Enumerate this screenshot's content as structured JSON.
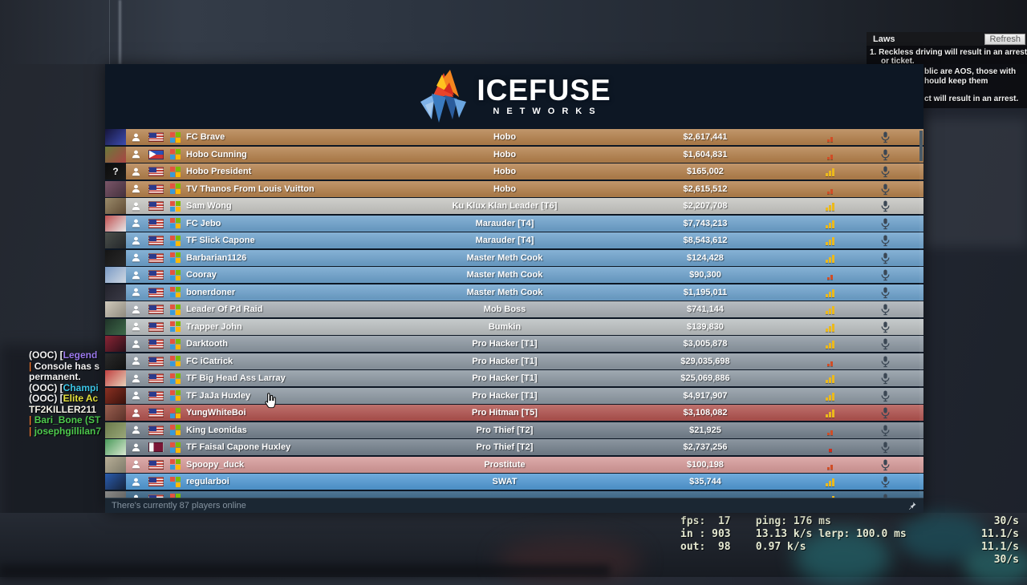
{
  "logo": {
    "title": "ICEFUSE",
    "subtitle": "NETWORKS"
  },
  "status_bar": {
    "text": "There's currently 87 players online"
  },
  "laws": {
    "title": "Laws",
    "refresh_label": "Refresh",
    "rule1_line1": "1. Reckless driving will result in an arrest",
    "rule1_line2": "or ticket.",
    "fragment_line1": "blic are AOS, those with",
    "fragment_line2": "hould keep them",
    "fragment_line3": "ct will result in an arrest."
  },
  "chat": {
    "lines": [
      {
        "segments": [
          {
            "text": "(OOC) [",
            "color": "#f2f2f2"
          },
          {
            "text": "Legend",
            "color": "#9d7bf0"
          }
        ]
      },
      {
        "segments": [
          {
            "text": "| ",
            "color": "#e0702e"
          },
          {
            "text": "Console has s",
            "color": "#f2f2f2"
          }
        ]
      },
      {
        "segments": [
          {
            "text": "permanent.",
            "color": "#f2f2f2"
          }
        ]
      },
      {
        "segments": [
          {
            "text": "(OOC) [",
            "color": "#f2f2f2"
          },
          {
            "text": "Champi",
            "color": "#3cc7e8"
          }
        ]
      },
      {
        "segments": [
          {
            "text": "(OOC) [",
            "color": "#f2f2f2"
          },
          {
            "text": "Elite Ac",
            "color": "#e6e23c"
          }
        ]
      },
      {
        "segments": [
          {
            "text": "TF2KILLER211",
            "color": "#f5f2e6"
          }
        ]
      },
      {
        "segments": [
          {
            "text": "| ",
            "color": "#e0702e"
          },
          {
            "text": "Bari_Bone (ST",
            "color": "#4ecb4e"
          }
        ]
      },
      {
        "segments": [
          {
            "text": "| ",
            "color": "#e0702e"
          },
          {
            "text": "josephgillilan7",
            "color": "#4ecb4e"
          }
        ]
      }
    ]
  },
  "netgraph": {
    "lines": [
      {
        "left": "fps:  17    ping: 176 ms",
        "rate": "30/s"
      },
      {
        "left": "in : 903    13.13 k/s lerp: 100.0 ms",
        "rate": "11.1/s"
      },
      {
        "left": "out:  98    0.97 k/s",
        "rate": "11.1/s"
      },
      {
        "left": "",
        "rate": "30/s"
      }
    ]
  },
  "players": [
    {
      "name": "FC Brave",
      "job": "Hobo",
      "money": "$2,617,441",
      "color": "#b5824e",
      "ping": "low",
      "flag": "us",
      "avatar": [
        "#15143a",
        "#3d4db0"
      ],
      "avatar_label": ""
    },
    {
      "name": "Hobo Cunning",
      "job": "Hobo",
      "money": "$1,604,831",
      "color": "#b5824e",
      "ping": "low",
      "flag": "ph",
      "avatar": [
        "#6a7a3a",
        "#aa4444"
      ],
      "avatar_label": ""
    },
    {
      "name": "Hobo President",
      "job": "Hobo",
      "money": "$165,002",
      "color": "#b5824e",
      "ping": "full",
      "flag": "us",
      "avatar": [
        "#0c0c0c",
        "#1c1c1c"
      ],
      "avatar_label": "?"
    },
    {
      "name": "TV Thanos From Louis Vuitton",
      "job": "Hobo",
      "money": "$2,615,512",
      "color": "#b5824e",
      "ping": "low",
      "flag": "us",
      "avatar": [
        "#7a5568",
        "#43303c"
      ],
      "avatar_label": ""
    },
    {
      "name": "Sam Wong",
      "job": "Ku Klux Klan Leader [T6]",
      "money": "$2,207,708",
      "color": "#c6c6c2",
      "ping": "full",
      "flag": "us",
      "avatar": [
        "#9a8a6a",
        "#5f4a33"
      ],
      "avatar_label": ""
    },
    {
      "name": "FC Jebo",
      "job": "Marauder [T4]",
      "money": "$7,743,213",
      "color": "#6fa3cd",
      "ping": "full",
      "flag": "us",
      "avatar": [
        "#c05050",
        "#e8e8e8"
      ],
      "avatar_label": ""
    },
    {
      "name": "TF Slick Capone",
      "job": "Marauder [T4]",
      "money": "$8,543,612",
      "color": "#6fa3cd",
      "ping": "full",
      "flag": "us",
      "avatar": [
        "#4a4f4a",
        "#23262a"
      ],
      "avatar_label": ""
    },
    {
      "name": "Barbarian1126",
      "job": "Master Meth Cook",
      "money": "$124,428",
      "color": "#6fa3cd",
      "ping": "full",
      "flag": "us",
      "avatar": [
        "#151515",
        "#2a2a2a"
      ],
      "avatar_label": ""
    },
    {
      "name": "Cooray",
      "job": "Master Meth Cook",
      "money": "$90,300",
      "color": "#6fa3cd",
      "ping": "low",
      "flag": "us",
      "avatar": [
        "#7a9ac5",
        "#cfd8e2"
      ],
      "avatar_label": ""
    },
    {
      "name": "bonerdoner",
      "job": "Master Meth Cook",
      "money": "$1,195,011",
      "color": "#6fa3cd",
      "ping": "full",
      "flag": "us",
      "avatar": [
        "#23232c",
        "#3a3a46"
      ],
      "avatar_label": ""
    },
    {
      "name": "Leader Of Pd Raid",
      "job": "Mob Boss",
      "money": "$741,144",
      "color": "#a9afb5",
      "ping": "full",
      "flag": "us",
      "avatar": [
        "#cfc9bb",
        "#8f8a7e"
      ],
      "avatar_label": ""
    },
    {
      "name": "Trapper John",
      "job": "Bumkin",
      "money": "$139,830",
      "color": "#bbc0c1",
      "ping": "full",
      "flag": "us",
      "avatar": [
        "#1f3328",
        "#3f6a4a"
      ],
      "avatar_label": ""
    },
    {
      "name": "Darktooth",
      "job": "Pro Hacker [T1]",
      "money": "$3,005,878",
      "color": "#8e99a3",
      "ping": "full",
      "flag": "us",
      "avatar": [
        "#8a2535",
        "#2a0f18"
      ],
      "avatar_label": ""
    },
    {
      "name": "FC iCatrick",
      "job": "Pro Hacker [T1]",
      "money": "$29,035,698",
      "color": "#8e99a3",
      "ping": "low",
      "flag": "us",
      "avatar": [
        "#2b2b2b",
        "#101010"
      ],
      "avatar_label": ""
    },
    {
      "name": "TF Big Head Ass Larray",
      "job": "Pro Hacker [T1]",
      "money": "$25,069,886",
      "color": "#8e99a3",
      "ping": "full",
      "flag": "us",
      "avatar": [
        "#c04040",
        "#e8d0b8"
      ],
      "avatar_label": ""
    },
    {
      "name": "TF JaJa Huxley",
      "job": "Pro Hacker [T1]",
      "money": "$4,917,907",
      "color": "#8e99a3",
      "ping": "full",
      "flag": "us",
      "avatar": [
        "#8a3022",
        "#3a120c"
      ],
      "avatar_label": ""
    },
    {
      "name": "YungWhiteBoi",
      "job": "Pro Hitman [T5]",
      "money": "$3,108,082",
      "color": "#b25551",
      "ping": "full",
      "flag": "us",
      "avatar": [
        "#9a6050",
        "#5a3028"
      ],
      "avatar_label": ""
    },
    {
      "name": "King Leonidas",
      "job": "Pro Thief [T2]",
      "money": "$21,925",
      "color": "#76828e",
      "ping": "low",
      "flag": "us",
      "avatar": [
        "#6a7a4a",
        "#9aa87a"
      ],
      "avatar_label": ""
    },
    {
      "name": "TF Faisal Capone Huxley",
      "job": "Pro Thief [T2]",
      "money": "$2,737,256",
      "color": "#76828e",
      "ping": "dot",
      "flag": "qa",
      "avatar": [
        "#4a9a5a",
        "#d8e8d0"
      ],
      "avatar_label": ""
    },
    {
      "name": "Spoopy_duck",
      "job": "Prostitute",
      "money": "$100,198",
      "color": "#d69b9a",
      "ping": "low",
      "flag": "us",
      "avatar": [
        "#b8ae96",
        "#7d7a6a"
      ],
      "avatar_label": ""
    },
    {
      "name": "regularboi",
      "job": "SWAT",
      "money": "$35,744",
      "color": "#549bd5",
      "ping": "full",
      "flag": "us",
      "avatar": [
        "#2a5cae",
        "#16233a"
      ],
      "avatar_label": ""
    }
  ]
}
